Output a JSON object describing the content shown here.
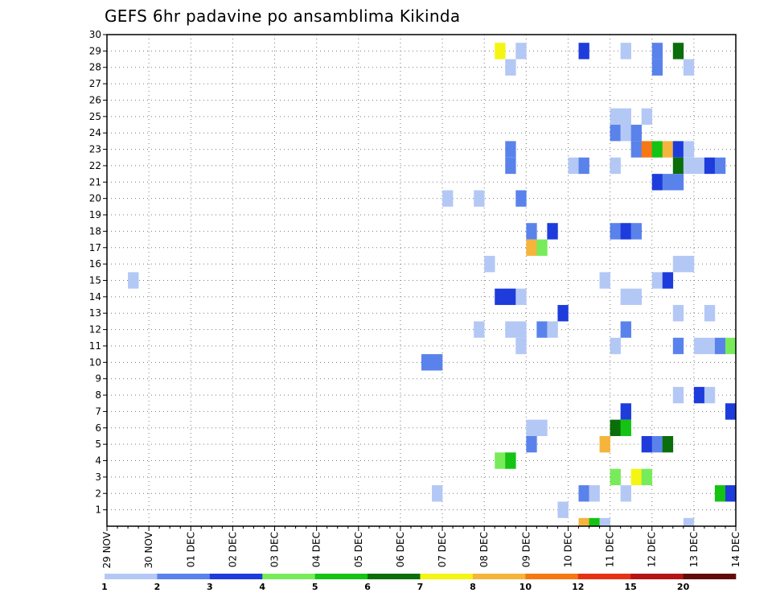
{
  "chart_data": {
    "type": "heatmap",
    "title": "GEFS 6hr padavine po ansamblima Kikinda",
    "x_tick_labels": [
      "29 NOV",
      "30 NOV",
      "01 DEC",
      "02 DEC",
      "03 DEC",
      "04 DEC",
      "05 DEC",
      "06 DEC",
      "07 DEC",
      "08 DEC",
      "09 DEC",
      "10 DEC",
      "11 DEC",
      "12 DEC",
      "13 DEC",
      "14 DEC"
    ],
    "x_steps_per_day": 4,
    "y_tick_labels": [
      "1",
      "2",
      "3",
      "4",
      "5",
      "6",
      "7",
      "8",
      "9",
      "10",
      "11",
      "12",
      "13",
      "14",
      "15",
      "16",
      "17",
      "18",
      "19",
      "20",
      "21",
      "22",
      "23",
      "24",
      "25",
      "26",
      "27",
      "28",
      "29",
      "30"
    ],
    "ylim": [
      0,
      30
    ],
    "grid": true,
    "color_scale": {
      "labels": [
        "1",
        "2",
        "3",
        "4",
        "5",
        "6",
        "7",
        "8",
        "10",
        "12",
        "15",
        "20"
      ],
      "colors": [
        "#b4c8f5",
        "#5a82eb",
        "#1e3cdc",
        "#78eb5a",
        "#14c314",
        "#0a6e0a",
        "#f5f514",
        "#f5b43c",
        "#f57814",
        "#e63214",
        "#b41414",
        "#640a0a"
      ]
    },
    "cells": [
      {
        "member": 29,
        "step": 37,
        "value": 7
      },
      {
        "member": 29,
        "step": 39,
        "value": 1
      },
      {
        "member": 29,
        "step": 45,
        "value": 3
      },
      {
        "member": 29,
        "step": 49,
        "value": 1
      },
      {
        "member": 29,
        "step": 52,
        "value": 2
      },
      {
        "member": 29,
        "step": 54,
        "value": 6
      },
      {
        "member": 28,
        "step": 38,
        "value": 1
      },
      {
        "member": 28,
        "step": 52,
        "value": 2
      },
      {
        "member": 28,
        "step": 55,
        "value": 1
      },
      {
        "member": 25,
        "step": 48,
        "value": 1
      },
      {
        "member": 25,
        "step": 49,
        "value": 1
      },
      {
        "member": 25,
        "step": 51,
        "value": 1
      },
      {
        "member": 24,
        "step": 48,
        "value": 2
      },
      {
        "member": 24,
        "step": 49,
        "value": 1
      },
      {
        "member": 24,
        "step": 50,
        "value": 2
      },
      {
        "member": 23,
        "step": 38,
        "value": 2
      },
      {
        "member": 23,
        "step": 50,
        "value": 2
      },
      {
        "member": 23,
        "step": 51,
        "value": 10
      },
      {
        "member": 23,
        "step": 52,
        "value": 5
      },
      {
        "member": 23,
        "step": 53,
        "value": 8
      },
      {
        "member": 23,
        "step": 54,
        "value": 3
      },
      {
        "member": 23,
        "step": 55,
        "value": 1
      },
      {
        "member": 22,
        "step": 38,
        "value": 2
      },
      {
        "member": 22,
        "step": 44,
        "value": 1
      },
      {
        "member": 22,
        "step": 45,
        "value": 2
      },
      {
        "member": 22,
        "step": 48,
        "value": 1
      },
      {
        "member": 22,
        "step": 54,
        "value": 6
      },
      {
        "member": 22,
        "step": 55,
        "value": 1
      },
      {
        "member": 22,
        "step": 56,
        "value": 1
      },
      {
        "member": 22,
        "step": 57,
        "value": 3
      },
      {
        "member": 22,
        "step": 58,
        "value": 2
      },
      {
        "member": 21,
        "step": 52,
        "value": 3
      },
      {
        "member": 21,
        "step": 53,
        "value": 2
      },
      {
        "member": 21,
        "step": 54,
        "value": 2
      },
      {
        "member": 20,
        "step": 32,
        "value": 1
      },
      {
        "member": 20,
        "step": 35,
        "value": 1
      },
      {
        "member": 20,
        "step": 39,
        "value": 2
      },
      {
        "member": 18,
        "step": 40,
        "value": 2
      },
      {
        "member": 18,
        "step": 42,
        "value": 3
      },
      {
        "member": 18,
        "step": 48,
        "value": 2
      },
      {
        "member": 18,
        "step": 49,
        "value": 3
      },
      {
        "member": 18,
        "step": 50,
        "value": 2
      },
      {
        "member": 17,
        "step": 40,
        "value": 8
      },
      {
        "member": 17,
        "step": 41,
        "value": 4
      },
      {
        "member": 16,
        "step": 36,
        "value": 1
      },
      {
        "member": 16,
        "step": 54,
        "value": 1
      },
      {
        "member": 16,
        "step": 55,
        "value": 1
      },
      {
        "member": 15,
        "step": 2,
        "value": 1
      },
      {
        "member": 15,
        "step": 47,
        "value": 1
      },
      {
        "member": 15,
        "step": 52,
        "value": 1
      },
      {
        "member": 15,
        "step": 53,
        "value": 3
      },
      {
        "member": 14,
        "step": 37,
        "value": 3
      },
      {
        "member": 14,
        "step": 38,
        "value": 3
      },
      {
        "member": 14,
        "step": 39,
        "value": 1
      },
      {
        "member": 14,
        "step": 49,
        "value": 1
      },
      {
        "member": 14,
        "step": 50,
        "value": 1
      },
      {
        "member": 13,
        "step": 43,
        "value": 3
      },
      {
        "member": 13,
        "step": 54,
        "value": 1
      },
      {
        "member": 13,
        "step": 57,
        "value": 1
      },
      {
        "member": 12,
        "step": 35,
        "value": 1
      },
      {
        "member": 12,
        "step": 38,
        "value": 1
      },
      {
        "member": 12,
        "step": 39,
        "value": 1
      },
      {
        "member": 12,
        "step": 41,
        "value": 2
      },
      {
        "member": 12,
        "step": 42,
        "value": 1
      },
      {
        "member": 12,
        "step": 49,
        "value": 2
      },
      {
        "member": 11,
        "step": 39,
        "value": 1
      },
      {
        "member": 11,
        "step": 48,
        "value": 1
      },
      {
        "member": 11,
        "step": 54,
        "value": 2
      },
      {
        "member": 11,
        "step": 56,
        "value": 1
      },
      {
        "member": 11,
        "step": 57,
        "value": 1
      },
      {
        "member": 11,
        "step": 58,
        "value": 2
      },
      {
        "member": 11,
        "step": 59,
        "value": 4
      },
      {
        "member": 10,
        "step": 30,
        "value": 2
      },
      {
        "member": 10,
        "step": 31,
        "value": 2
      },
      {
        "member": 8,
        "step": 54,
        "value": 1
      },
      {
        "member": 8,
        "step": 56,
        "value": 3
      },
      {
        "member": 8,
        "step": 57,
        "value": 1
      },
      {
        "member": 7,
        "step": 49,
        "value": 3
      },
      {
        "member": 7,
        "step": 59,
        "value": 3
      },
      {
        "member": 6,
        "step": 40,
        "value": 1
      },
      {
        "member": 6,
        "step": 41,
        "value": 1
      },
      {
        "member": 6,
        "step": 48,
        "value": 6
      },
      {
        "member": 6,
        "step": 49,
        "value": 5
      },
      {
        "member": 5,
        "step": 40,
        "value": 2
      },
      {
        "member": 5,
        "step": 47,
        "value": 8
      },
      {
        "member": 5,
        "step": 51,
        "value": 3
      },
      {
        "member": 5,
        "step": 52,
        "value": 2
      },
      {
        "member": 5,
        "step": 53,
        "value": 6
      },
      {
        "member": 4,
        "step": 37,
        "value": 4
      },
      {
        "member": 4,
        "step": 38,
        "value": 5
      },
      {
        "member": 3,
        "step": 48,
        "value": 4
      },
      {
        "member": 3,
        "step": 50,
        "value": 7
      },
      {
        "member": 3,
        "step": 51,
        "value": 4
      },
      {
        "member": 2,
        "step": 31,
        "value": 1
      },
      {
        "member": 2,
        "step": 45,
        "value": 2
      },
      {
        "member": 2,
        "step": 46,
        "value": 1
      },
      {
        "member": 2,
        "step": 49,
        "value": 1
      },
      {
        "member": 2,
        "step": 58,
        "value": 5
      },
      {
        "member": 2,
        "step": 59,
        "value": 3
      },
      {
        "member": 1,
        "step": 43,
        "value": 1
      },
      {
        "member": 0,
        "step": 45,
        "value": 9
      },
      {
        "member": 0,
        "step": 46,
        "value": 5
      },
      {
        "member": 0,
        "step": 47,
        "value": 1
      },
      {
        "member": 0,
        "step": 55,
        "value": 1
      }
    ]
  }
}
